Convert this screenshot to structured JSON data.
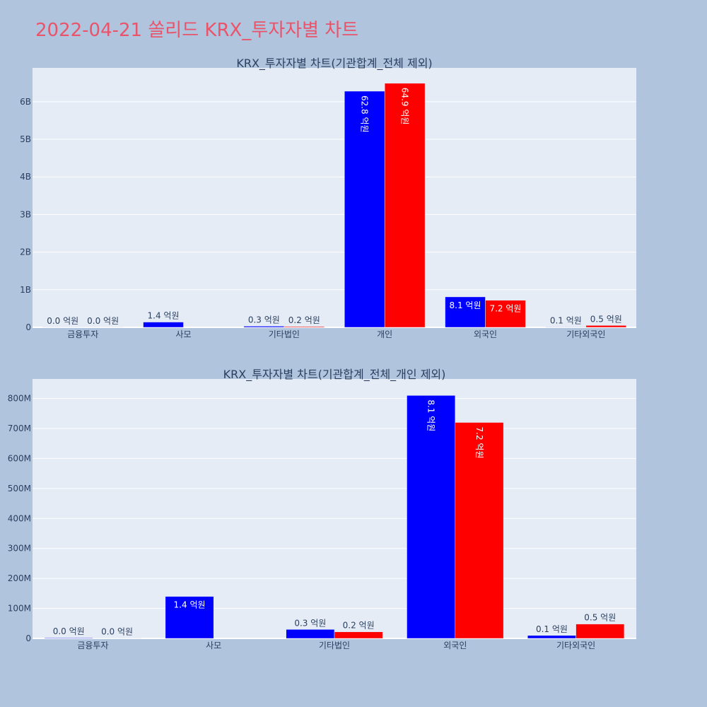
{
  "page": {
    "title": "2022-04-21 쏠리드 KRX_투자자별 차트"
  },
  "colors": {
    "series_a": "#0000ff",
    "series_b": "#ff0000",
    "plot_bg": "#e5ecf6",
    "paper_bg": "#b0c4de",
    "title": "#e9546b"
  },
  "chart_data": [
    {
      "type": "bar",
      "title": "KRX_투자자별 차트(기관합계_전체 제외)",
      "categories": [
        "금융투자",
        "사모",
        "기타법인",
        "개인",
        "외국인",
        "기타외국인"
      ],
      "series": [
        {
          "values": [
            2000000,
            140000000,
            30000000,
            6280000000,
            810000000,
            10000000
          ],
          "labels": [
            "0.0 억원",
            "1.4 억원",
            "0.3 억원",
            "62.8 억원",
            "8.1 억원",
            "0.1 억원"
          ]
        },
        {
          "values": [
            1000000,
            0,
            20000000,
            6490000000,
            720000000,
            50000000
          ],
          "labels": [
            "0.0 억원",
            "",
            "0.2 억원",
            "64.9 억원",
            "7.2 억원",
            "0.5 억원"
          ]
        }
      ],
      "yticks": [
        0,
        1000000000,
        2000000000,
        3000000000,
        4000000000,
        5000000000,
        6000000000
      ],
      "ytick_labels": [
        "0",
        "1B",
        "2B",
        "3B",
        "4B",
        "5B",
        "6B"
      ],
      "ylim": [
        0,
        6900000000
      ]
    },
    {
      "type": "bar",
      "title": "KRX_투자자별 차트(기관합계_전체_개인 제외)",
      "categories": [
        "금융투자",
        "사모",
        "기타법인",
        "외국인",
        "기타외국인"
      ],
      "series": [
        {
          "values": [
            2000000,
            140000000,
            30000000,
            810000000,
            10000000
          ],
          "labels": [
            "0.0 억원",
            "1.4 억원",
            "0.3 억원",
            "8.1 억원",
            "0.1 억원"
          ]
        },
        {
          "values": [
            1000000,
            0,
            22000000,
            720000000,
            48000000
          ],
          "labels": [
            "0.0 억원",
            "",
            "0.2 억원",
            "7.2 억원",
            "0.5 억원"
          ]
        }
      ],
      "yticks": [
        0,
        100000000,
        200000000,
        300000000,
        400000000,
        500000000,
        600000000,
        700000000,
        800000000
      ],
      "ytick_labels": [
        "0",
        "100M",
        "200M",
        "300M",
        "400M",
        "500M",
        "600M",
        "700M",
        "800M"
      ],
      "ylim": [
        0,
        865000000
      ]
    }
  ]
}
